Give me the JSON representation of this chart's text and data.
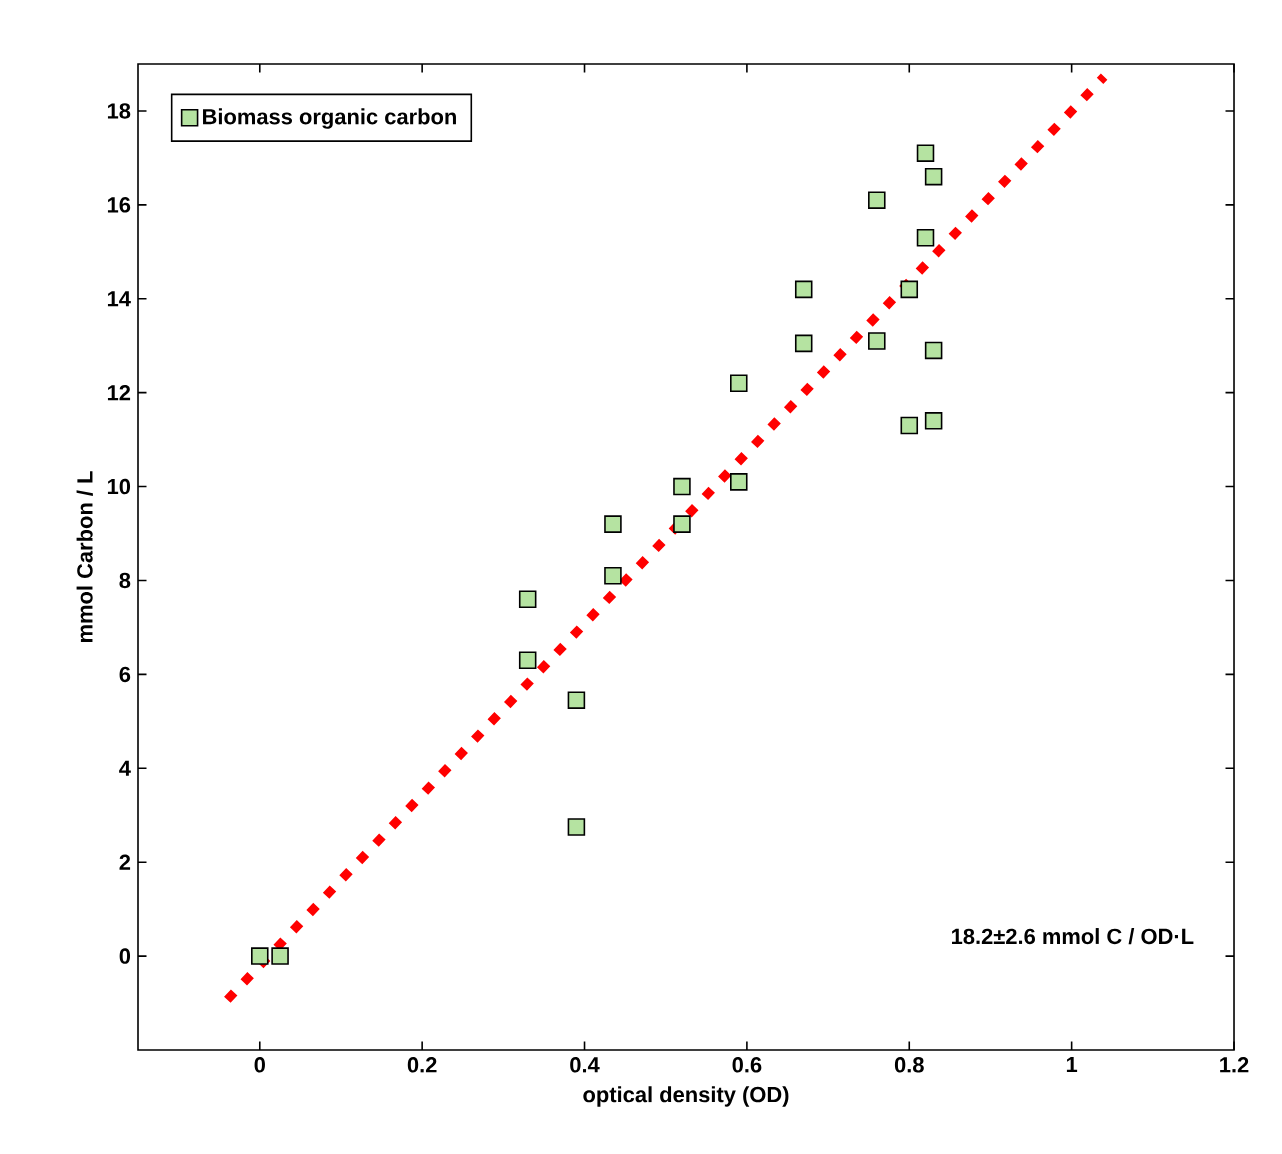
{
  "chart_data": {
    "type": "scatter",
    "xlabel": "optical density (OD)",
    "ylabel": "mmol Carbon / L",
    "xlim": [
      -0.15,
      1.2
    ],
    "ylim": [
      -2,
      19
    ],
    "xticks": [
      0,
      0.2,
      0.4,
      0.6,
      0.8,
      1,
      1.2
    ],
    "yticks": [
      0,
      2,
      4,
      6,
      8,
      10,
      12,
      14,
      16,
      18
    ],
    "grid": false,
    "legend": "top left",
    "annotations": [
      "18.2±2.6 mmol C / OD·L"
    ],
    "series": [
      {
        "name": "Biomass organic carbon",
        "marker": "square",
        "color": "#b5e3a1",
        "x": [
          0,
          0.025,
          0.33,
          0.33,
          0.39,
          0.39,
          0.435,
          0.435,
          0.52,
          0.52,
          0.59,
          0.59,
          0.67,
          0.67,
          0.76,
          0.76,
          0.8,
          0.8,
          0.82,
          0.83,
          0.82,
          0.83,
          0.83
        ],
        "values": [
          0,
          0,
          7.6,
          6.3,
          5.45,
          2.75,
          9.2,
          8.1,
          10,
          9.2,
          12.2,
          10.1,
          14.2,
          13.05,
          16.1,
          13.1,
          14.2,
          11.3,
          17.1,
          16.6,
          15.3,
          12.9,
          11.4
        ]
      },
      {
        "type": "line",
        "color": "#ff0000",
        "line_style": "dotted",
        "x": [
          -0.04,
          1.04
        ],
        "values": [
          -0.93,
          18.73
        ]
      }
    ]
  }
}
